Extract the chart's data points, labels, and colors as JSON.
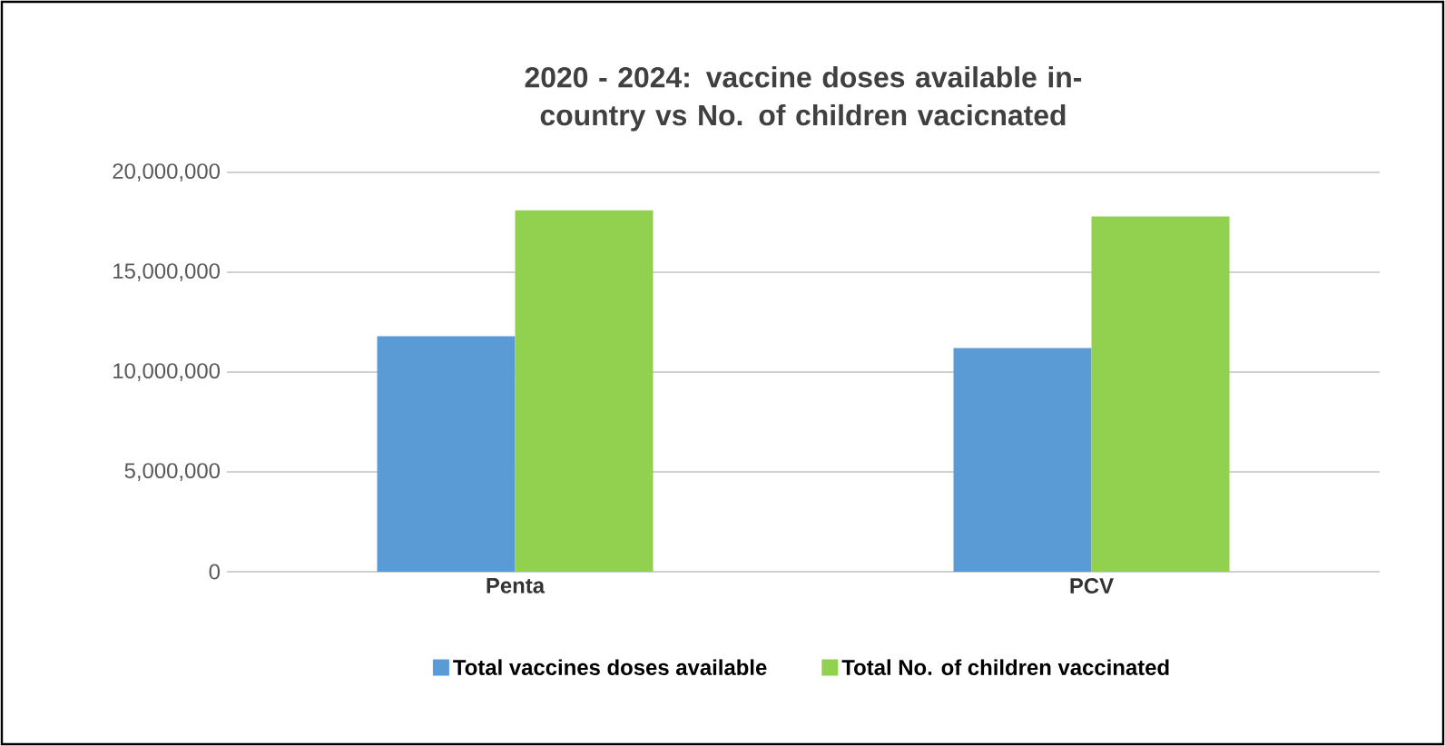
{
  "chart_data": {
    "type": "bar",
    "title": "2020 - 2024: vaccine doses available in-country vs No. of children vacicnated",
    "categories": [
      "Penta",
      "PCV"
    ],
    "series": [
      {
        "name": "Total vaccines doses  available",
        "color": "#5b9bd5",
        "values": [
          11800000,
          11200000
        ]
      },
      {
        "name": "Total No. of children vaccinated",
        "color": "#92d050",
        "values": [
          18100000,
          17800000
        ]
      }
    ],
    "ylim": [
      0,
      20000000
    ],
    "yticks": [
      {
        "value": 0,
        "label": "0"
      },
      {
        "value": 5000000,
        "label": "5,000,000"
      },
      {
        "value": 10000000,
        "label": "10,000,000"
      },
      {
        "value": 15000000,
        "label": "15,000,000"
      },
      {
        "value": 20000000,
        "label": "20,000,000"
      }
    ],
    "grid": "y",
    "legend": "bottom"
  }
}
